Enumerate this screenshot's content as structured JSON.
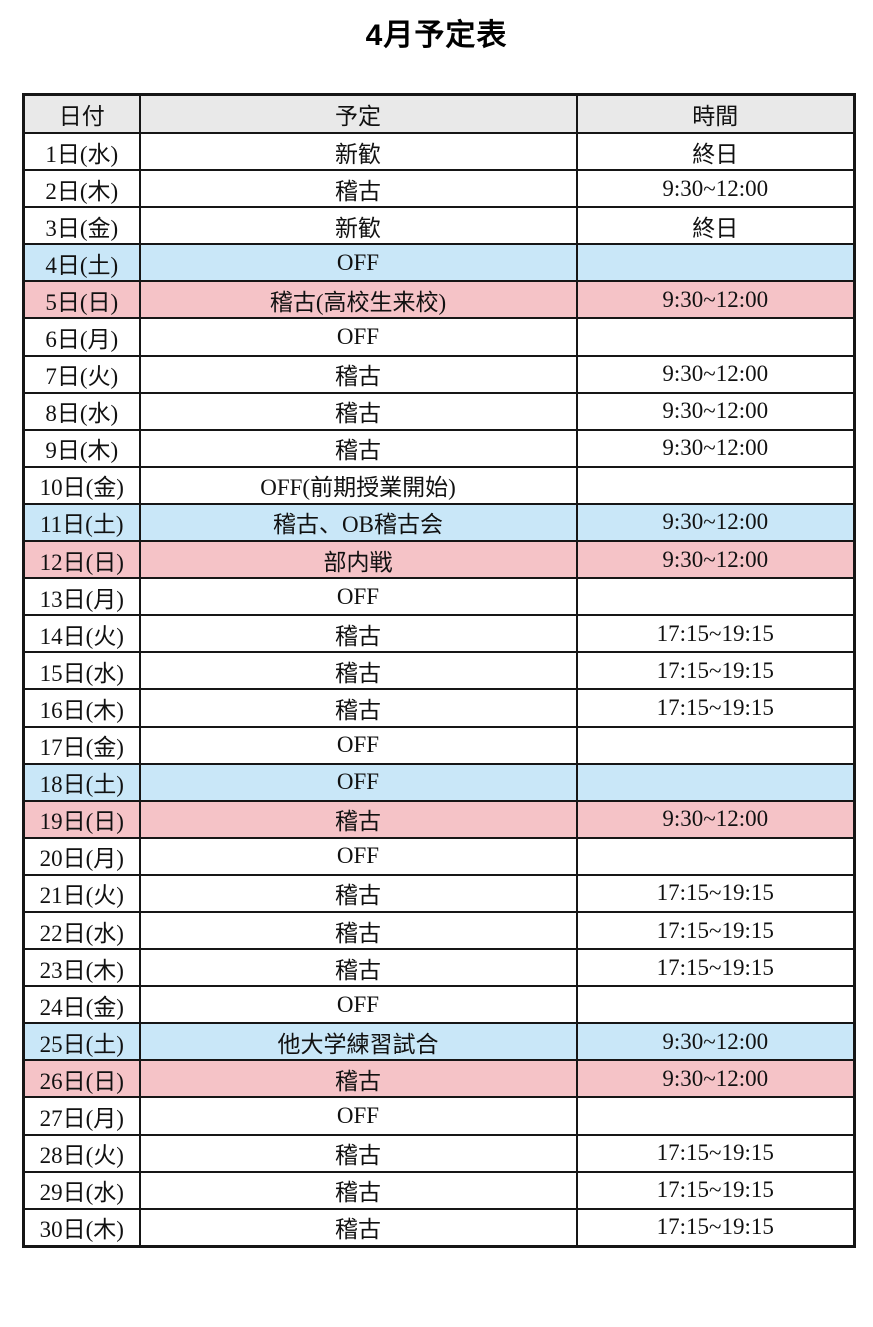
{
  "page": {
    "title": "4月予定表"
  },
  "table": {
    "headers": [
      {
        "label": "日付"
      },
      {
        "label": "予定"
      },
      {
        "label": "時間"
      }
    ],
    "colors": {
      "header_bg": "#e9e9e9",
      "weekday_bg": "#ffffff",
      "saturday_bg": "#c9e7f8",
      "sunday_bg": "#f5c3c7",
      "border": "#161616"
    },
    "rows": [
      {
        "date": "1日(水)",
        "plan": "新歓",
        "time": "終日",
        "day_type": "weekday"
      },
      {
        "date": "2日(木)",
        "plan": "稽古",
        "time": "9:30~12:00",
        "day_type": "weekday"
      },
      {
        "date": "3日(金)",
        "plan": "新歓",
        "time": "終日",
        "day_type": "weekday"
      },
      {
        "date": "4日(土)",
        "plan": "OFF",
        "time": "",
        "day_type": "saturday"
      },
      {
        "date": "5日(日)",
        "plan": "稽古(高校生来校)",
        "time": "9:30~12:00",
        "day_type": "sunday"
      },
      {
        "date": "6日(月)",
        "plan": "OFF",
        "time": "",
        "day_type": "weekday"
      },
      {
        "date": "7日(火)",
        "plan": "稽古",
        "time": "9:30~12:00",
        "day_type": "weekday"
      },
      {
        "date": "8日(水)",
        "plan": "稽古",
        "time": "9:30~12:00",
        "day_type": "weekday"
      },
      {
        "date": "9日(木)",
        "plan": "稽古",
        "time": "9:30~12:00",
        "day_type": "weekday"
      },
      {
        "date": "10日(金)",
        "plan": "OFF(前期授業開始)",
        "time": "",
        "day_type": "weekday"
      },
      {
        "date": "11日(土)",
        "plan": "稽古、OB稽古会",
        "time": "9:30~12:00",
        "day_type": "saturday"
      },
      {
        "date": "12日(日)",
        "plan": "部内戦",
        "time": "9:30~12:00",
        "day_type": "sunday"
      },
      {
        "date": "13日(月)",
        "plan": "OFF",
        "time": "",
        "day_type": "weekday"
      },
      {
        "date": "14日(火)",
        "plan": "稽古",
        "time": "17:15~19:15",
        "day_type": "weekday"
      },
      {
        "date": "15日(水)",
        "plan": "稽古",
        "time": "17:15~19:15",
        "day_type": "weekday"
      },
      {
        "date": "16日(木)",
        "plan": "稽古",
        "time": "17:15~19:15",
        "day_type": "weekday"
      },
      {
        "date": "17日(金)",
        "plan": "OFF",
        "time": "",
        "day_type": "weekday"
      },
      {
        "date": "18日(土)",
        "plan": "OFF",
        "time": "",
        "day_type": "saturday"
      },
      {
        "date": "19日(日)",
        "plan": "稽古",
        "time": "9:30~12:00",
        "day_type": "sunday"
      },
      {
        "date": "20日(月)",
        "plan": "OFF",
        "time": "",
        "day_type": "weekday"
      },
      {
        "date": "21日(火)",
        "plan": "稽古",
        "time": "17:15~19:15",
        "day_type": "weekday"
      },
      {
        "date": "22日(水)",
        "plan": "稽古",
        "time": "17:15~19:15",
        "day_type": "weekday"
      },
      {
        "date": "23日(木)",
        "plan": "稽古",
        "time": "17:15~19:15",
        "day_type": "weekday"
      },
      {
        "date": "24日(金)",
        "plan": "OFF",
        "time": "",
        "day_type": "weekday"
      },
      {
        "date": "25日(土)",
        "plan": "他大学練習試合",
        "time": "9:30~12:00",
        "day_type": "saturday"
      },
      {
        "date": "26日(日)",
        "plan": "稽古",
        "time": "9:30~12:00",
        "day_type": "sunday"
      },
      {
        "date": "27日(月)",
        "plan": "OFF",
        "time": "",
        "day_type": "weekday"
      },
      {
        "date": "28日(火)",
        "plan": "稽古",
        "time": "17:15~19:15",
        "day_type": "weekday"
      },
      {
        "date": "29日(水)",
        "plan": "稽古",
        "time": "17:15~19:15",
        "day_type": "weekday"
      },
      {
        "date": "30日(木)",
        "plan": "稽古",
        "time": "17:15~19:15",
        "day_type": "weekday"
      }
    ]
  }
}
